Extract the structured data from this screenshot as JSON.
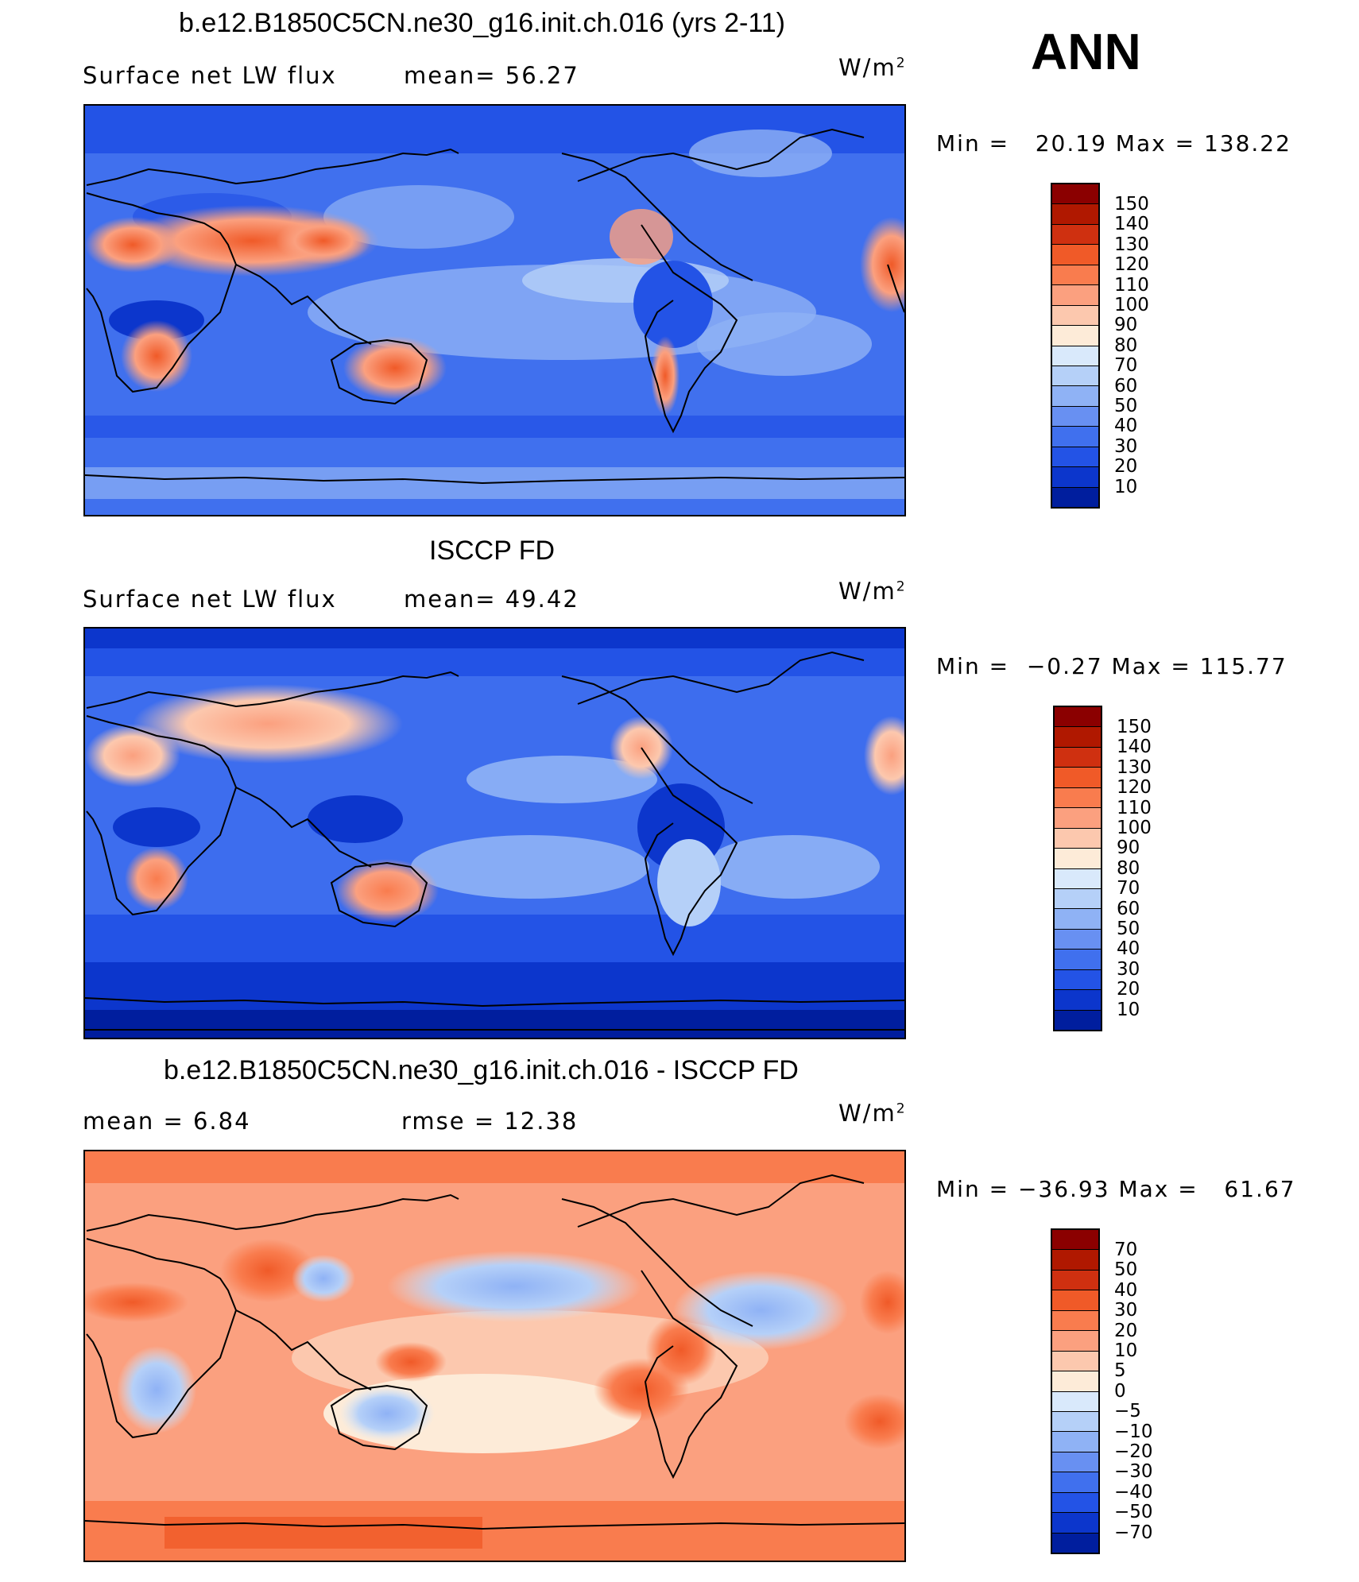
{
  "header": {
    "season": "ANN"
  },
  "panels": [
    {
      "id": "model",
      "title": "b.e12.B1850C5CN.ne30_g16.init.ch.016 (yrs 2-11)",
      "subtitle_left": "Surface net LW flux",
      "subtitle_mid": "mean=  56.27",
      "units_base": "W/m",
      "units_exp": "2",
      "minmax": "Min =   20.19 Max = 138.22",
      "colorbar_colors": [
        "#8b0000",
        "#b01800",
        "#cf3010",
        "#f05a28",
        "#f97c4e",
        "#fba07f",
        "#fcc8ae",
        "#fdebd8",
        "#d9e9fb",
        "#b5d0f8",
        "#8fb2f5",
        "#6890f2",
        "#4070ee",
        "#2353e6",
        "#0c36cc",
        "#001e9e",
        "#00107a"
      ],
      "colorbar_labels": [
        "150",
        "140",
        "130",
        "120",
        "110",
        "100",
        "90",
        "80",
        "70",
        "60",
        "50",
        "40",
        "30",
        "20",
        "10"
      ]
    },
    {
      "id": "obs",
      "title": "ISCCP FD",
      "subtitle_left": "Surface net LW flux",
      "subtitle_mid": "mean=  49.42",
      "units_base": "W/m",
      "units_exp": "2",
      "minmax": "Min =  −0.27 Max = 115.77",
      "colorbar_colors": [
        "#8b0000",
        "#b01800",
        "#cf3010",
        "#f05a28",
        "#f97c4e",
        "#fba07f",
        "#fcc8ae",
        "#fdebd8",
        "#d9e9fb",
        "#b5d0f8",
        "#8fb2f5",
        "#6890f2",
        "#4070ee",
        "#2353e6",
        "#0c36cc",
        "#001e9e",
        "#00107a"
      ],
      "colorbar_labels": [
        "150",
        "140",
        "130",
        "120",
        "110",
        "100",
        "90",
        "80",
        "70",
        "60",
        "50",
        "40",
        "30",
        "20",
        "10"
      ]
    },
    {
      "id": "diff",
      "title": "b.e12.B1850C5CN.ne30_g16.init.ch.016 - ISCCP FD",
      "subtitle_left": "mean =    6.84",
      "subtitle_mid": "rmse =   12.38",
      "units_base": "W/m",
      "units_exp": "2",
      "minmax": "Min = −36.93 Max =   61.67",
      "colorbar_colors": [
        "#8b0000",
        "#b01800",
        "#cf3010",
        "#f05a28",
        "#f97c4e",
        "#fba07f",
        "#fcc8ae",
        "#fdebd8",
        "#d9e9fb",
        "#b5d0f8",
        "#8fb2f5",
        "#6890f2",
        "#4070ee",
        "#2353e6",
        "#0c36cc",
        "#001e9e",
        "#00107a"
      ],
      "colorbar_labels": [
        "70",
        "50",
        "40",
        "30",
        "20",
        "10",
        "5",
        "0",
        "−5",
        "−10",
        "−20",
        "−30",
        "−40",
        "−50",
        "−70"
      ]
    }
  ]
}
